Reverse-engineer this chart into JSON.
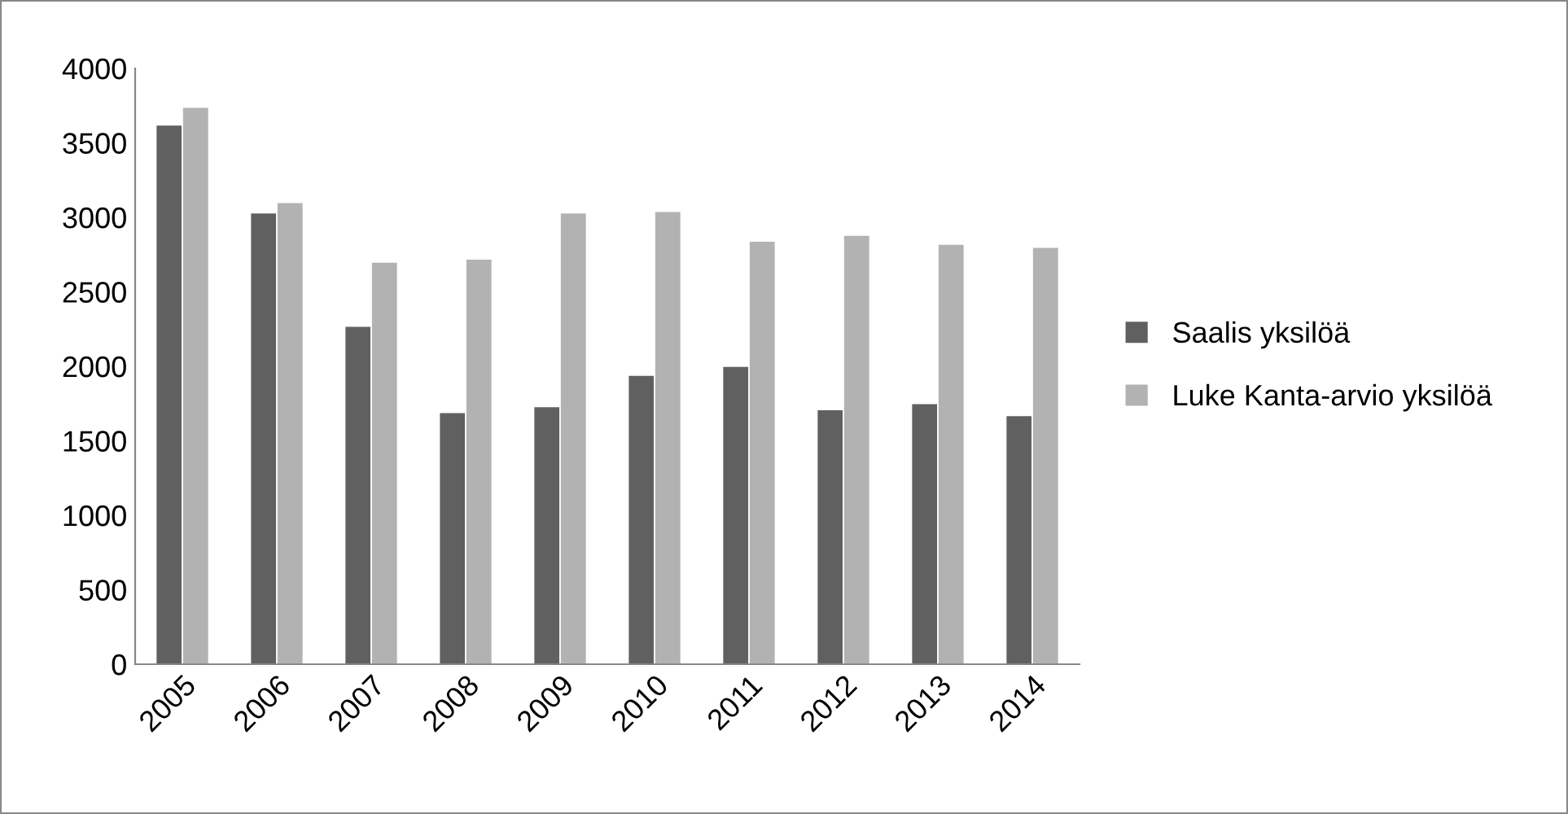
{
  "chart_data": {
    "type": "bar",
    "categories": [
      "2005",
      "2006",
      "2007",
      "2008",
      "2009",
      "2010",
      "2011",
      "2012",
      "2013",
      "2014"
    ],
    "series": [
      {
        "name": "Saalis yksilöä",
        "color": "#606060",
        "values": [
          3620,
          3030,
          2270,
          1690,
          1730,
          1940,
          2000,
          1710,
          1750,
          1670
        ]
      },
      {
        "name": "Luke Kanta-arvio yksilöä",
        "color": "#b2b2b2",
        "values": [
          3740,
          3100,
          2700,
          2720,
          3030,
          3040,
          2840,
          2880,
          2820,
          2800
        ]
      }
    ],
    "ylim": [
      0,
      4000
    ],
    "yticks": [
      0,
      500,
      1000,
      1500,
      2000,
      2500,
      3000,
      3500,
      4000
    ],
    "grid": false,
    "legend": "right"
  }
}
